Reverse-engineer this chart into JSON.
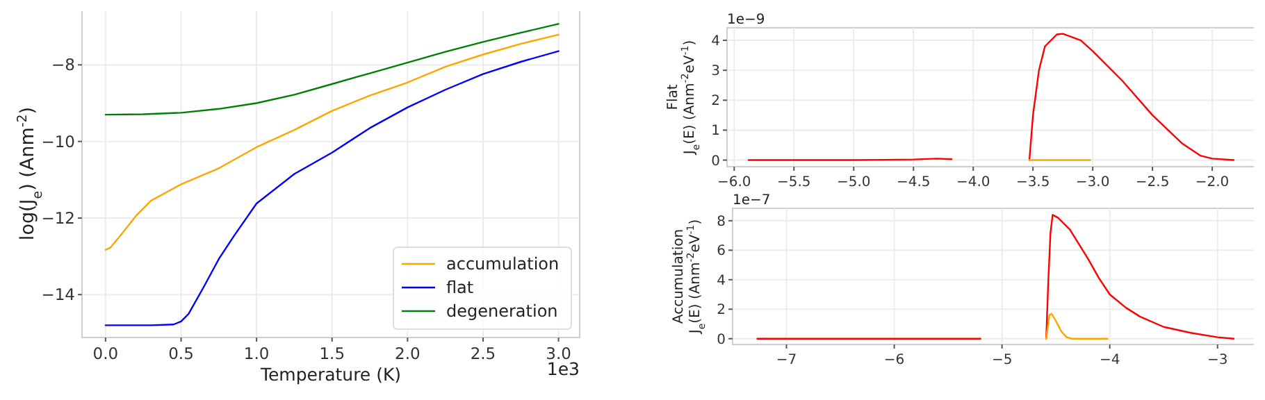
{
  "chart_data": [
    {
      "type": "line",
      "xlabel": "Temperature (K)",
      "ylabel": "log(J$_{e}$) (Anm$^{-2}$)",
      "xlim": [
        -0.156,
        3.14
      ],
      "ylim": [
        -15.12,
        -6.56
      ],
      "xticks": [
        {
          "value": 0,
          "label": "0.0"
        },
        {
          "value": 0.5,
          "label": "0.5"
        },
        {
          "value": 1,
          "label": "1.0"
        },
        {
          "value": 1.5,
          "label": "1.5"
        },
        {
          "value": 2,
          "label": "2.0"
        },
        {
          "value": 2.5,
          "label": "2.5"
        },
        {
          "value": 3,
          "label": "3.0"
        }
      ],
      "yticks": [
        {
          "value": -8,
          "label": "−8"
        },
        {
          "value": -10,
          "label": "−10"
        },
        {
          "value": -12,
          "label": "−12"
        },
        {
          "value": -14,
          "label": "−14"
        }
      ],
      "grid": true,
      "legend": "bottom right",
      "annotations": [
        "1e3"
      ],
      "series": [
        {
          "name": "accumulation",
          "color": "#ffa500",
          "x": [
            0,
            0.03,
            0.1,
            0.2,
            0.3,
            0.5,
            0.75,
            1,
            1.25,
            1.5,
            1.75,
            2,
            2.25,
            2.5,
            2.75,
            3
          ],
          "values": [
            -12.83,
            -12.78,
            -12.45,
            -11.95,
            -11.55,
            -11.12,
            -10.7,
            -10.15,
            -9.7,
            -9.2,
            -8.8,
            -8.46,
            -8.05,
            -7.73,
            -7.45,
            -7.21
          ]
        },
        {
          "name": "flat",
          "color": "#0000ff",
          "x": [
            0,
            0.3,
            0.45,
            0.5,
            0.55,
            0.65,
            0.75,
            0.85,
            1,
            1.25,
            1.5,
            1.75,
            2,
            2.25,
            2.5,
            2.75,
            3
          ],
          "values": [
            -14.8,
            -14.8,
            -14.78,
            -14.7,
            -14.5,
            -13.8,
            -13.07,
            -12.47,
            -11.62,
            -10.85,
            -10.29,
            -9.65,
            -9.11,
            -8.65,
            -8.24,
            -7.92,
            -7.64
          ]
        },
        {
          "name": "degeneration",
          "color": "#008000",
          "x": [
            0,
            0.25,
            0.5,
            0.75,
            1,
            1.25,
            1.5,
            1.75,
            2,
            2.25,
            2.5,
            2.75,
            3
          ],
          "values": [
            -9.3,
            -9.29,
            -9.25,
            -9.15,
            -9.0,
            -8.78,
            -8.5,
            -8.22,
            -7.94,
            -7.66,
            -7.4,
            -7.16,
            -6.93
          ]
        }
      ]
    },
    {
      "type": "line",
      "ylabel": "Flat\nJ$_{e}$(E) (Anm$^{-2}$eV$^{-1}$)",
      "xlim": [
        -6.06,
        -1.64
      ],
      "ylim": [
        -0.22,
        4.42
      ],
      "xticks": [
        {
          "value": -6,
          "label": "−6.0"
        },
        {
          "value": -5.5,
          "label": "−5.5"
        },
        {
          "value": -5,
          "label": "−5.0"
        },
        {
          "value": -4.5,
          "label": "−4.5"
        },
        {
          "value": -4,
          "label": "−4.0"
        },
        {
          "value": -3.5,
          "label": "−3.5"
        },
        {
          "value": -3,
          "label": "−3.0"
        },
        {
          "value": -2.5,
          "label": "−2.5"
        },
        {
          "value": -2,
          "label": "−2.0"
        }
      ],
      "yticks": [
        0,
        1,
        2,
        3,
        4
      ],
      "grid": true,
      "annotations": [
        "1e−9"
      ],
      "series": [
        {
          "color": "#ff0000",
          "x": [
            -5.88,
            -5,
            -4.5,
            -4.3,
            -4.18,
            null,
            -3.53,
            -3.5,
            -3.45,
            -3.4,
            -3.3,
            -3.25,
            -3.1,
            -3,
            -2.75,
            -2.5,
            -2.25,
            -2.1,
            -2,
            -1.82
          ],
          "values": [
            0,
            0,
            0.02,
            0.05,
            0.03,
            null,
            0,
            1.5,
            3,
            3.8,
            4.2,
            4.22,
            4,
            3.64,
            2.64,
            1.5,
            0.55,
            0.15,
            0.05,
            0
          ]
        },
        {
          "color": "#ffa500",
          "x": [
            -3.53,
            -3.02
          ],
          "values": [
            0,
            0
          ]
        }
      ]
    },
    {
      "type": "line",
      "ylabel": "Accumulation\nJ$_{e}$(E) (Anm$^{-2}$eV$^{-1}$)",
      "xlim": [
        -7.5,
        -2.65
      ],
      "ylim": [
        -0.39,
        8.84
      ],
      "xticks": [
        {
          "value": -7,
          "label": "−7"
        },
        {
          "value": -6,
          "label": "−6"
        },
        {
          "value": -5,
          "label": "−5"
        },
        {
          "value": -4,
          "label": "−4"
        },
        {
          "value": -3,
          "label": "−3"
        }
      ],
      "yticks": [
        0,
        2,
        4,
        6,
        8
      ],
      "grid": true,
      "annotations": [
        "1e−7"
      ],
      "series": [
        {
          "color": "#ff0000",
          "x": [
            -7.27,
            -5.2,
            null,
            -4.59,
            -4.57,
            -4.55,
            -4.53,
            -4.48,
            -4.37,
            -4.2,
            -4.1,
            -4,
            -3.85,
            -3.72,
            -3.5,
            -3.25,
            -3,
            -2.85
          ],
          "values": [
            0,
            0,
            null,
            0,
            4,
            7.2,
            8.4,
            8.2,
            7.4,
            5.4,
            4.1,
            3,
            2.1,
            1.5,
            0.8,
            0.4,
            0.1,
            0
          ]
        },
        {
          "color": "#ffa500",
          "x": [
            -4.59,
            -4.56,
            -4.54,
            -4.5,
            -4.45,
            -4.4,
            -4.35,
            -4.02
          ],
          "values": [
            0,
            1.6,
            1.7,
            1.2,
            0.5,
            0.1,
            0,
            0
          ]
        }
      ]
    }
  ]
}
